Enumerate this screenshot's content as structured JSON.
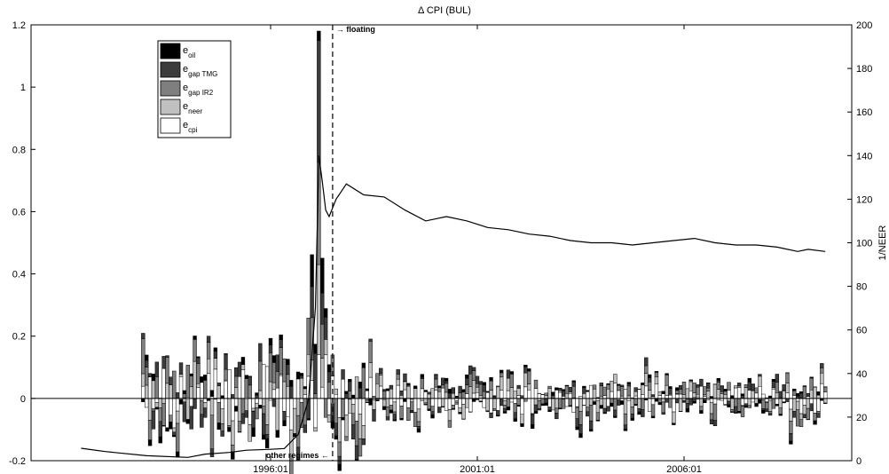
{
  "chart_data": {
    "type": "bar",
    "title": "Δ CPI (BUL)",
    "xlabel": "",
    "ylabel": "",
    "y2label": "1/NEER",
    "ylim": [
      -0.2,
      1.2
    ],
    "y2lim": [
      0,
      200
    ],
    "y_ticks": [
      "-0.2",
      "0",
      "0.2",
      "0.4",
      "0.6",
      "0.8",
      "1",
      "1.2"
    ],
    "y2_ticks": [
      "0",
      "20",
      "40",
      "60",
      "80",
      "100",
      "120",
      "140",
      "160",
      "180",
      "200"
    ],
    "x_ticks": [
      "1996:01",
      "2001:01",
      "2006:01"
    ],
    "annotations": {
      "floating": "→ floating",
      "other_regimes": "other regimes ←"
    },
    "regime_break": "1997:07",
    "legend": {
      "placement": "top-left",
      "entries": [
        {
          "base": "e",
          "sub": "oil",
          "color": "#000000"
        },
        {
          "base": "e",
          "sub": "gap TMG",
          "color": "#3c3c3c"
        },
        {
          "base": "e",
          "sub": "gap IR2",
          "color": "#7f7f7f"
        },
        {
          "base": "e",
          "sub": "neer",
          "color": "#c0c0c0"
        },
        {
          "base": "e",
          "sub": "cpi",
          "color": "#ffffff"
        }
      ]
    },
    "series_1_over_neer": {
      "name": "1/NEER",
      "points": [
        [
          "1991:06",
          5.7
        ],
        [
          "1992:01",
          4.2
        ],
        [
          "1993:01",
          2.3
        ],
        [
          "1994:01",
          1.5
        ],
        [
          "1994:06",
          3.0
        ],
        [
          "1995:01",
          3.8
        ],
        [
          "1995:06",
          4.8
        ],
        [
          "1996:01",
          5.2
        ],
        [
          "1996:05",
          5.6
        ],
        [
          "1996:09",
          12
        ],
        [
          "1996:12",
          28
        ],
        [
          "1997:02",
          70
        ],
        [
          "1997:03",
          140
        ],
        [
          "1997:04",
          128
        ],
        [
          "1997:05",
          115
        ],
        [
          "1997:06",
          112
        ],
        [
          "1997:08",
          120
        ],
        [
          "1997:11",
          127
        ],
        [
          "1998:04",
          122
        ],
        [
          "1998:10",
          121
        ],
        [
          "1999:04",
          115
        ],
        [
          "1999:10",
          110
        ],
        [
          "2000:04",
          112
        ],
        [
          "2000:10",
          110
        ],
        [
          "2001:04",
          107
        ],
        [
          "2001:10",
          106
        ],
        [
          "2002:04",
          104
        ],
        [
          "2002:10",
          103
        ],
        [
          "2003:04",
          101
        ],
        [
          "2003:10",
          100
        ],
        [
          "2004:04",
          100
        ],
        [
          "2004:10",
          99
        ],
        [
          "2005:04",
          100
        ],
        [
          "2005:10",
          101
        ],
        [
          "2006:04",
          102
        ],
        [
          "2006:10",
          100
        ],
        [
          "2007:04",
          99
        ],
        [
          "2007:10",
          99
        ],
        [
          "2008:04",
          98
        ],
        [
          "2008:10",
          96
        ],
        [
          "2009:01",
          97
        ],
        [
          "2009:06",
          96
        ]
      ]
    },
    "spike": {
      "date": "1997:03",
      "e_cpi_top": 1.18,
      "e_neer_top": 1.04,
      "e_gap_ir2_top": 0.75,
      "e_gap_tmg_top": 0.42
    }
  }
}
